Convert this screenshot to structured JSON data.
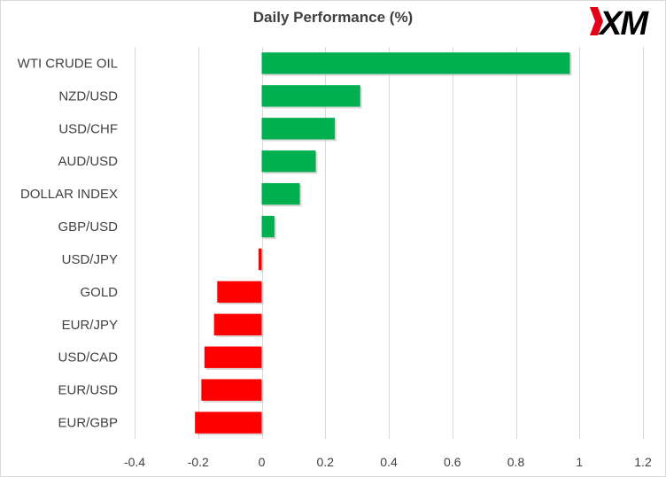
{
  "chart_data": {
    "type": "bar",
    "orientation": "horizontal",
    "title": "Daily Performance  (%)",
    "categories": [
      "WTI CRUDE OIL",
      "NZD/USD",
      "USD/CHF",
      "AUD/USD",
      "DOLLAR INDEX",
      "GBP/USD",
      "USD/JPY",
      "GOLD",
      "EUR/JPY",
      "USD/CAD",
      "EUR/USD",
      "EUR/GBP"
    ],
    "values": [
      0.97,
      0.31,
      0.23,
      0.17,
      0.12,
      0.04,
      -0.01,
      -0.14,
      -0.15,
      -0.18,
      -0.19,
      -0.21
    ],
    "xlim": [
      -0.4,
      1.2
    ],
    "xticks": [
      -0.4,
      -0.2,
      0,
      0.2,
      0.4,
      0.6,
      0.8,
      1,
      1.2
    ],
    "xtick_labels": [
      "-0.4",
      "-0.2",
      "0",
      "0.2",
      "0.4",
      "0.6",
      "0.8",
      "1",
      "1.2"
    ],
    "grid": true,
    "colors": {
      "positive": "#00b050",
      "negative": "#ff0000",
      "grid": "#d9d9d9",
      "text": "#404040"
    }
  },
  "brand": {
    "logo_text": "XM",
    "logo_color": "#000000",
    "accent": "#e2001a"
  }
}
